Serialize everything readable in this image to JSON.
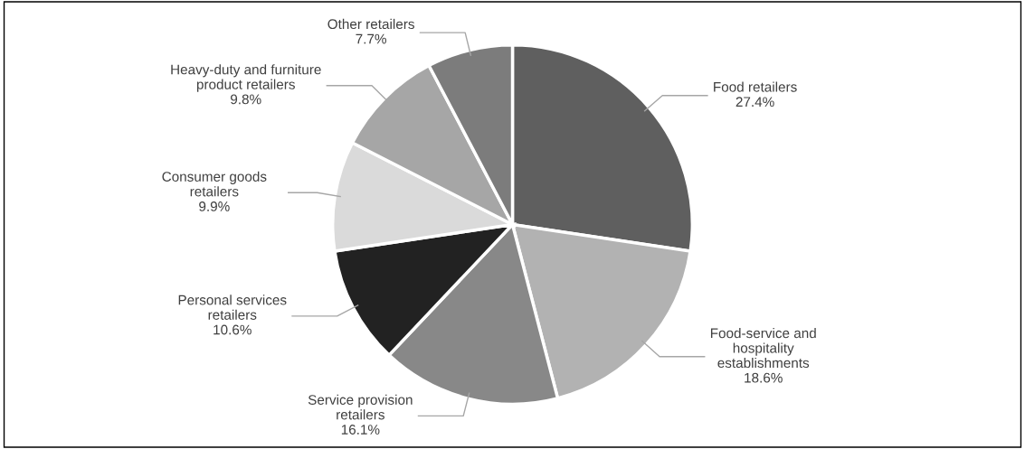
{
  "chart_data": {
    "type": "pie",
    "categories": [
      "Food retailers",
      "Food-service and\nhospitality\nestablishments",
      "Service provision\nretailers",
      "Personal services\nretailers",
      "Consumer goods\nretailers",
      "Heavy-duty and furniture\nproduct retailers",
      "Other retailers"
    ],
    "values": [
      27.4,
      18.6,
      16.1,
      10.6,
      9.9,
      9.8,
      7.7
    ],
    "colors": [
      "#5f5f5f",
      "#b2b2b2",
      "#888888",
      "#222222",
      "#dadada",
      "#a6a6a6",
      "#7c7c7c"
    ],
    "value_labels": [
      "27.4%",
      "18.6%",
      "16.1%",
      "10.6%",
      "9.9%",
      "9.8%",
      "7.7%"
    ]
  }
}
